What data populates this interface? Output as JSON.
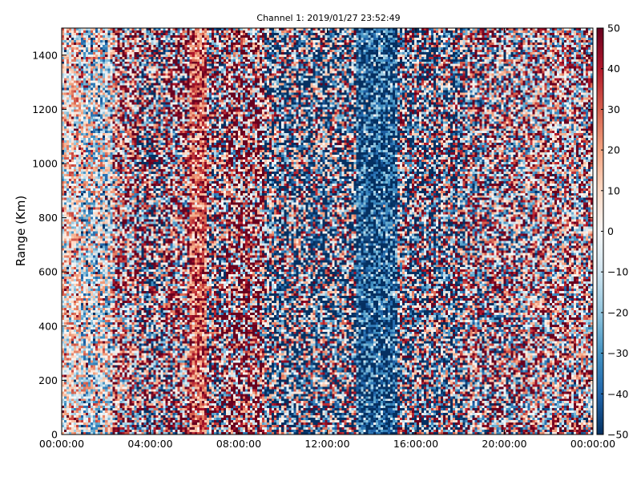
{
  "chart_data": {
    "type": "heatmap",
    "title": "Channel 1: 2019/01/27 23:52:49",
    "xlabel": "",
    "ylabel": "Range (Km)",
    "x_ticks": [
      "00:00:00",
      "04:00:00",
      "08:00:00",
      "12:00:00",
      "16:00:00",
      "20:00:00",
      "00:00:00"
    ],
    "x_range_hours": [
      0,
      24
    ],
    "y_ticks": [
      "0",
      "200",
      "400",
      "600",
      "800",
      "1000",
      "1200",
      "1400"
    ],
    "y_tick_values": [
      0,
      200,
      400,
      600,
      800,
      1000,
      1200,
      1400
    ],
    "ylim": [
      0,
      1500
    ],
    "colorbar": {
      "ticks": [
        "50",
        "40",
        "30",
        "20",
        "10",
        "0",
        "−10",
        "−20",
        "−30",
        "−40",
        "−50"
      ],
      "tick_values": [
        50,
        40,
        30,
        20,
        10,
        0,
        -10,
        -20,
        -30,
        -40,
        -50
      ],
      "vmin": -50,
      "vmax": 50,
      "colormap": "RdBu_r",
      "colors": [
        "#053061",
        "#2166ac",
        "#4393c3",
        "#92c5de",
        "#d1e5f0",
        "#f7f7f7",
        "#fddbc7",
        "#f4a582",
        "#d6604d",
        "#b2182b",
        "#67001f"
      ]
    },
    "grid": false,
    "bands": [
      {
        "hours": [
          0.0,
          0.9
        ],
        "mean": 5,
        "spread": 30
      },
      {
        "hours": [
          0.9,
          2.3
        ],
        "mean": -5,
        "spread": 38
      },
      {
        "hours": [
          2.3,
          3.4
        ],
        "mean": 15,
        "spread": 55
      },
      {
        "hours": [
          3.4,
          4.7
        ],
        "mean": 0,
        "spread": 70
      },
      {
        "hours": [
          4.7,
          5.8
        ],
        "mean": 15,
        "spread": 65
      },
      {
        "hours": [
          5.8,
          6.6
        ],
        "mean": 30,
        "spread": 20
      },
      {
        "hours": [
          6.6,
          7.4
        ],
        "mean": 5,
        "spread": 70
      },
      {
        "hours": [
          7.4,
          9.2
        ],
        "mean": 25,
        "spread": 65
      },
      {
        "hours": [
          9.2,
          13.3
        ],
        "mean": -18,
        "spread": 70
      },
      {
        "hours": [
          13.3,
          15.2
        ],
        "mean": -42,
        "spread": 25
      },
      {
        "hours": [
          15.2,
          18.2
        ],
        "mean": -10,
        "spread": 70
      },
      {
        "hours": [
          18.2,
          20.8
        ],
        "mean": 5,
        "spread": 60
      },
      {
        "hours": [
          20.8,
          24.0
        ],
        "mean": 10,
        "spread": 55
      }
    ]
  }
}
